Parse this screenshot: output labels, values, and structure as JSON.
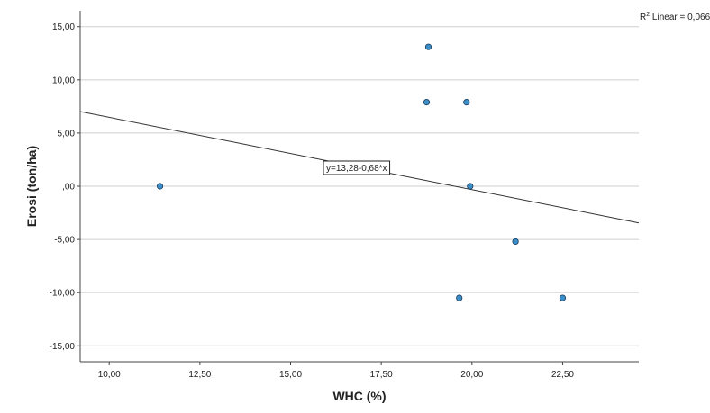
{
  "chart_data": {
    "type": "scatter",
    "xlabel": "WHC (%)",
    "ylabel": "Erosi (ton/ha)",
    "xlim": [
      9.2,
      24.6
    ],
    "ylim": [
      -16.5,
      16.5
    ],
    "xticks": [
      10,
      12.5,
      15,
      17.5,
      20,
      22.5
    ],
    "xtick_labels": [
      "10,00",
      "12,50",
      "15,00",
      "17,50",
      "20,00",
      "22,50"
    ],
    "yticks": [
      15,
      10,
      5,
      0,
      -5,
      -10,
      -15
    ],
    "ytick_labels": [
      "15,00",
      "10,00",
      "5,00",
      ",00",
      "-5,00",
      "-10,00",
      "-15,00"
    ],
    "grid": "horizontal",
    "points": [
      {
        "x": 11.4,
        "y": 0
      },
      {
        "x": 18.75,
        "y": 7.9
      },
      {
        "x": 18.8,
        "y": 13.1
      },
      {
        "x": 19.85,
        "y": 7.9
      },
      {
        "x": 19.95,
        "y": 0
      },
      {
        "x": 19.65,
        "y": -10.5
      },
      {
        "x": 21.2,
        "y": -5.2
      },
      {
        "x": 22.5,
        "y": -10.5
      }
    ],
    "fit_line": {
      "intercept": 13.28,
      "slope": -0.68
    },
    "fit_label": "y=13,28-0,68*x",
    "r2_prefix": "R",
    "r2_sup": "2",
    "r2_text": " Linear = 0,066",
    "point_color": "#3a8fc8",
    "point_stroke": "#1a3a5c"
  }
}
